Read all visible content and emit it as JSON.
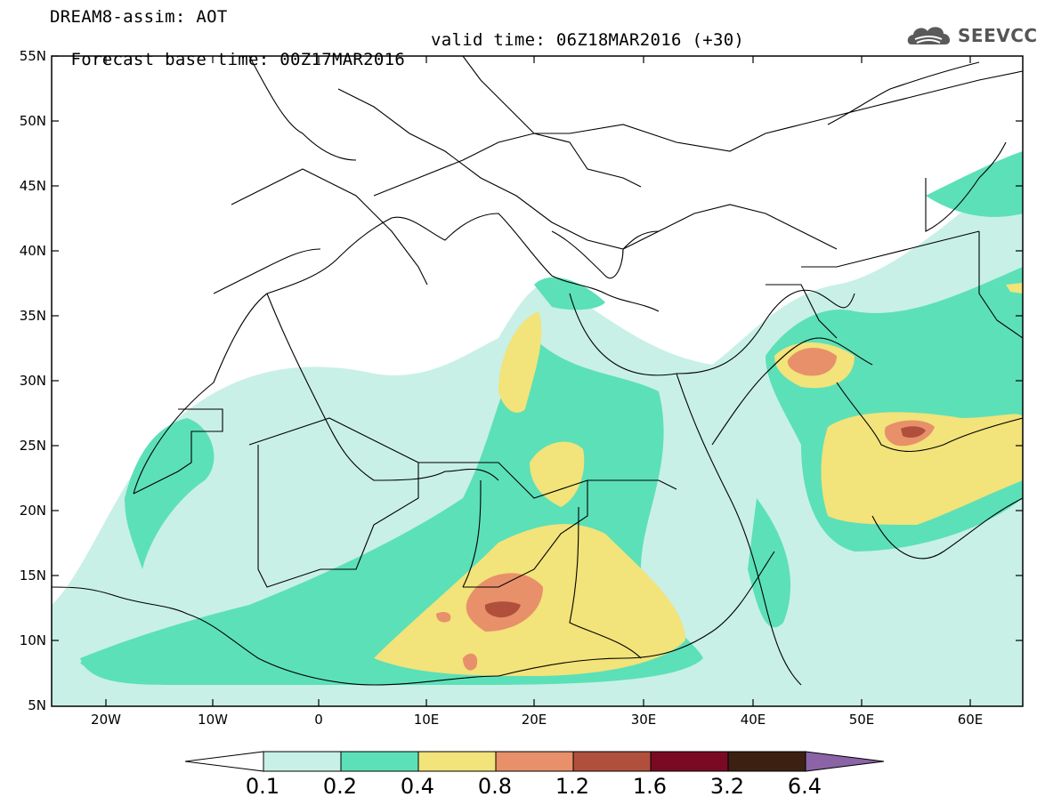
{
  "title": {
    "line1": "DREAM8-assim: AOT",
    "line2_base": "Forecast base time: 00Z17MAR2016",
    "line2_valid": "valid time: 06Z18MAR2016 (+30)"
  },
  "logo": {
    "text": "SEEVCCC",
    "icon": "cloud-logo-icon"
  },
  "map": {
    "lon_range": [
      -25,
      65
    ],
    "lat_range": [
      5,
      55
    ],
    "lat_labels": [
      "55N",
      "50N",
      "45N",
      "40N",
      "35N",
      "30N",
      "25N",
      "20N",
      "15N",
      "10N",
      "5N"
    ],
    "lon_labels": [
      "20W",
      "10W",
      "0",
      "10E",
      "20E",
      "30E",
      "40E",
      "50E",
      "60E"
    ]
  },
  "colorbar": {
    "labels": [
      "0.1",
      "0.2",
      "0.4",
      "0.8",
      "1.2",
      "1.6",
      "3.2",
      "6.4"
    ],
    "colors": [
      "#ffffff",
      "#c8f0e6",
      "#5ce0b8",
      "#f2e37a",
      "#e8906a",
      "#b0503c",
      "#7a0a24",
      "#3c2012",
      "#8a64a6"
    ]
  }
}
